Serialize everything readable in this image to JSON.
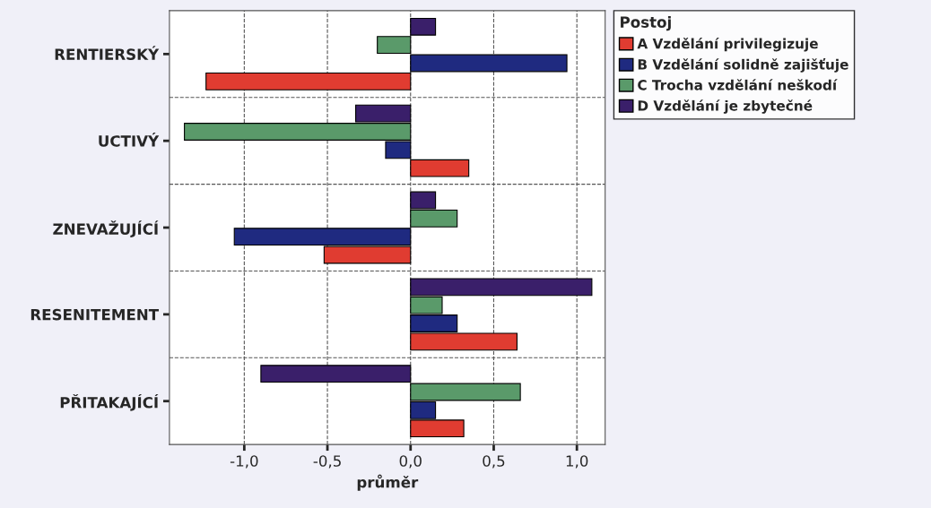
{
  "chart_data": {
    "type": "bar",
    "orientation": "horizontal",
    "xlabel": "průměr",
    "legend_title": "Postoj",
    "legend": "top right",
    "grid": true,
    "categories": [
      "RENTIERSKÝ",
      "UCTIVÝ",
      "ZNEVAŽUJÍCÍ",
      "RESENITEMENT",
      "PŘITAKAJÍCÍ"
    ],
    "xlim": [
      -1.45,
      1.17
    ],
    "xticks": [
      {
        "value": -1.0,
        "label": "-1,0"
      },
      {
        "value": -0.5,
        "label": "-0,5"
      },
      {
        "value": 0.0,
        "label": "0,0"
      },
      {
        "value": 0.5,
        "label": "0,5"
      },
      {
        "value": 1.0,
        "label": "1,0"
      }
    ],
    "series": [
      {
        "name": "A Vzdělání privilegizuje",
        "color": "#e03c31",
        "values": [
          -1.23,
          0.35,
          -0.52,
          0.64,
          0.32
        ]
      },
      {
        "name": "B Vzdělání solidně zajišťuje",
        "color": "#1f2a80",
        "values": [
          0.94,
          -0.15,
          -1.06,
          0.28,
          0.15
        ]
      },
      {
        "name": "C Trocha vzdělání neškodí",
        "color": "#5a9a6a",
        "values": [
          -0.2,
          -1.36,
          0.28,
          0.19,
          0.66
        ]
      },
      {
        "name": "D Vzdělání je zbytečné",
        "color": "#3a1f6a",
        "values": [
          0.15,
          -0.33,
          0.15,
          1.09,
          -0.9
        ]
      }
    ]
  }
}
